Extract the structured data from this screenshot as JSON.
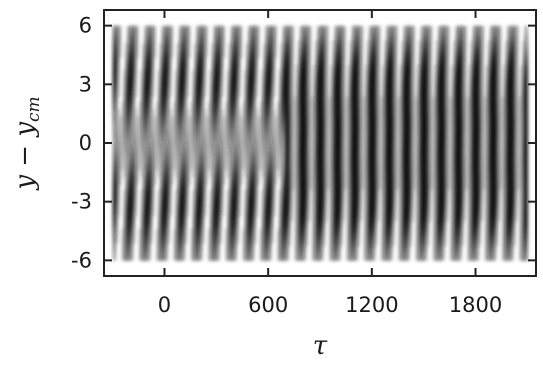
{
  "chart_data": {
    "type": "heatmap",
    "title": "",
    "xlabel": "τ",
    "ylabel": "y − y_{cm}",
    "ylabel_main": "y − y",
    "ylabel_sub": "cm",
    "xlim": [
      -350,
      2150
    ],
    "ylim": [
      -6.8,
      6.8
    ],
    "xticks": [
      0,
      600,
      1200,
      1800
    ],
    "xtick_labels": [
      "0",
      "600",
      "1200",
      "1800"
    ],
    "yticks": [
      6,
      3,
      0,
      -3,
      -6
    ],
    "ytick_labels": [
      "6",
      "3",
      "0",
      "-3",
      "-6"
    ],
    "colormap": [
      "#ffffff",
      "#111111"
    ],
    "data_extent": {
      "x": [
        -300,
        2100
      ],
      "y": [
        -6,
        6
      ]
    },
    "period": 100,
    "switch_tau": 700,
    "regimes": [
      {
        "tau_range": [
          -300,
          700
        ],
        "bands_y": [
          3.2,
          -3.2
        ],
        "band_width": 1.9,
        "band_tilt": -0.35
      },
      {
        "tau_range": [
          700,
          2100
        ],
        "bands_y": [
          3.4,
          0,
          -3.4
        ],
        "band_width": 1.7,
        "band_tilt": -0.35
      }
    ],
    "grid": false,
    "legend": "none"
  }
}
